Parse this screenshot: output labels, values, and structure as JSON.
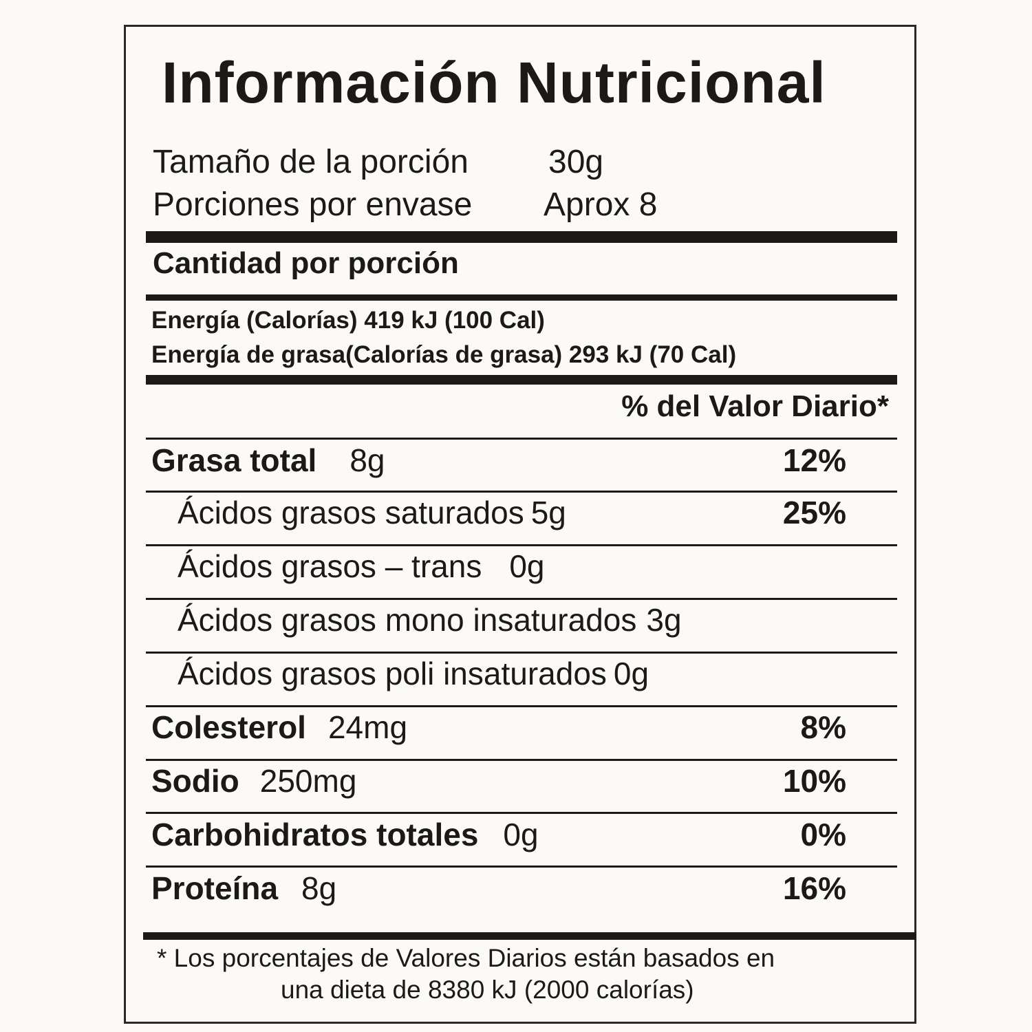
{
  "title": "Información Nutricional",
  "serving": {
    "size_label": "Tamaño de la porción",
    "size_value": "30g",
    "per_label": "Porciones por envase",
    "per_value": "Aprox 8"
  },
  "amount_header": "Cantidad por porción",
  "energy": {
    "line1": "Energía (Calorías) 419 kJ   (100 Cal)",
    "line2": "Energía de grasa(Calorías de grasa) 293 kJ (70 Cal)"
  },
  "dv_header": "% del Valor Diario*",
  "rows": [
    {
      "label": "Grasa total",
      "amount": "8g",
      "dv": "12%"
    },
    {
      "label": "Ácidos grasos saturados",
      "amount": "5g",
      "dv": "25%"
    },
    {
      "label": "Ácidos grasos – trans",
      "amount": "0g",
      "dv": ""
    },
    {
      "label": "Ácidos grasos mono insaturados",
      "amount": "3g",
      "dv": ""
    },
    {
      "label": "Ácidos grasos poli insaturados",
      "amount": "0g",
      "dv": ""
    },
    {
      "label": "Colesterol",
      "amount": "24mg",
      "dv": "8%"
    },
    {
      "label": "Sodio",
      "amount": "250mg",
      "dv": "10%"
    },
    {
      "label": "Carbohidratos totales",
      "amount": "0g",
      "dv": "0%"
    },
    {
      "label": "Proteína",
      "amount": "8g",
      "dv": "16%"
    }
  ],
  "footnote": {
    "line1": "*  Los porcentajes de Valores Diarios están basados en",
    "line2": "una dieta de 8380 kJ (2000 calorías)"
  }
}
